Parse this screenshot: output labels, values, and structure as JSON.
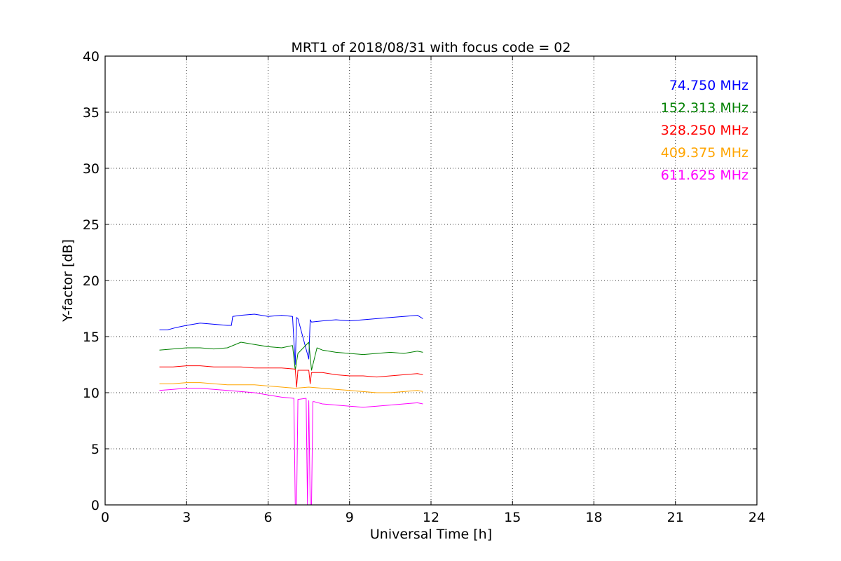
{
  "chart_data": {
    "type": "line",
    "title": "MRT1 of 2018/08/31 with focus code = 02",
    "xlabel": "Universal Time [h]",
    "ylabel": "Y-factor [dB]",
    "xlim": [
      0,
      24
    ],
    "ylim": [
      0,
      40
    ],
    "xticks": [
      0,
      3,
      6,
      9,
      12,
      15,
      18,
      21,
      24
    ],
    "yticks": [
      0,
      5,
      10,
      15,
      20,
      25,
      30,
      35,
      40
    ],
    "grid": true,
    "legend_position": "top-right",
    "series": [
      {
        "name": "74.750 MHz",
        "color": "#0000ff",
        "x": [
          2.0,
          2.3,
          2.6,
          3.0,
          3.5,
          4.0,
          4.5,
          4.65,
          4.7,
          5.0,
          5.5,
          6.0,
          6.5,
          6.9,
          7.0,
          7.05,
          7.1,
          7.5,
          7.55,
          7.6,
          8.0,
          8.5,
          9.0,
          9.5,
          10.0,
          10.5,
          11.0,
          11.5,
          11.7
        ],
        "y": [
          15.6,
          15.6,
          15.8,
          16.0,
          16.2,
          16.1,
          16.0,
          16.0,
          16.8,
          16.9,
          17.0,
          16.8,
          16.9,
          16.8,
          12.5,
          16.7,
          16.6,
          13.0,
          16.5,
          16.3,
          16.4,
          16.5,
          16.4,
          16.5,
          16.6,
          16.7,
          16.8,
          16.9,
          16.6
        ]
      },
      {
        "name": "152.313 MHz",
        "color": "#008000",
        "x": [
          2.0,
          2.5,
          3.0,
          3.5,
          4.0,
          4.5,
          5.0,
          5.5,
          6.0,
          6.5,
          6.9,
          7.0,
          7.1,
          7.5,
          7.6,
          7.8,
          8.0,
          8.5,
          9.0,
          9.5,
          10.0,
          10.5,
          11.0,
          11.5,
          11.7
        ],
        "y": [
          13.8,
          13.9,
          14.0,
          14.0,
          13.9,
          14.0,
          14.5,
          14.3,
          14.1,
          14.0,
          14.2,
          12.0,
          13.5,
          14.5,
          12.0,
          14.0,
          13.8,
          13.6,
          13.5,
          13.4,
          13.5,
          13.6,
          13.5,
          13.7,
          13.6
        ]
      },
      {
        "name": "328.250 MHz",
        "color": "#ff0000",
        "x": [
          2.0,
          2.5,
          3.0,
          3.5,
          4.0,
          4.5,
          5.0,
          5.5,
          6.0,
          6.5,
          7.0,
          7.05,
          7.1,
          7.5,
          7.55,
          7.6,
          8.0,
          8.5,
          9.0,
          9.5,
          10.0,
          10.5,
          11.0,
          11.5,
          11.7
        ],
        "y": [
          12.3,
          12.3,
          12.4,
          12.4,
          12.3,
          12.3,
          12.3,
          12.2,
          12.2,
          12.2,
          12.1,
          10.5,
          12.0,
          12.0,
          10.8,
          11.8,
          11.8,
          11.6,
          11.5,
          11.5,
          11.4,
          11.5,
          11.6,
          11.7,
          11.6
        ]
      },
      {
        "name": "409.375 MHz",
        "color": "#ffa500",
        "x": [
          2.0,
          2.5,
          3.0,
          3.5,
          4.0,
          4.5,
          5.0,
          5.5,
          6.0,
          6.5,
          7.0,
          7.5,
          8.0,
          8.5,
          9.0,
          9.5,
          10.0,
          10.5,
          11.0,
          11.5,
          11.7
        ],
        "y": [
          10.8,
          10.8,
          10.9,
          10.9,
          10.8,
          10.7,
          10.7,
          10.7,
          10.6,
          10.5,
          10.4,
          10.5,
          10.4,
          10.3,
          10.2,
          10.1,
          10.0,
          10.0,
          10.1,
          10.2,
          10.1
        ]
      },
      {
        "name": "611.625 MHz",
        "color": "#ff00ff",
        "x": [
          2.0,
          2.5,
          3.0,
          3.5,
          4.0,
          4.5,
          5.0,
          5.5,
          6.0,
          6.5,
          6.95,
          7.0,
          7.05,
          7.1,
          7.4,
          7.45,
          7.5,
          7.55,
          7.6,
          7.65,
          7.7,
          8.0,
          8.5,
          9.0,
          9.5,
          10.0,
          10.5,
          11.0,
          11.5,
          11.7
        ],
        "y": [
          10.2,
          10.3,
          10.4,
          10.4,
          10.3,
          10.2,
          10.1,
          10.0,
          9.8,
          9.6,
          9.5,
          0.0,
          0.0,
          9.4,
          9.5,
          0.0,
          9.3,
          0.0,
          0.0,
          9.2,
          9.2,
          9.0,
          8.9,
          8.8,
          8.7,
          8.8,
          8.9,
          9.0,
          9.1,
          9.0
        ]
      }
    ]
  }
}
